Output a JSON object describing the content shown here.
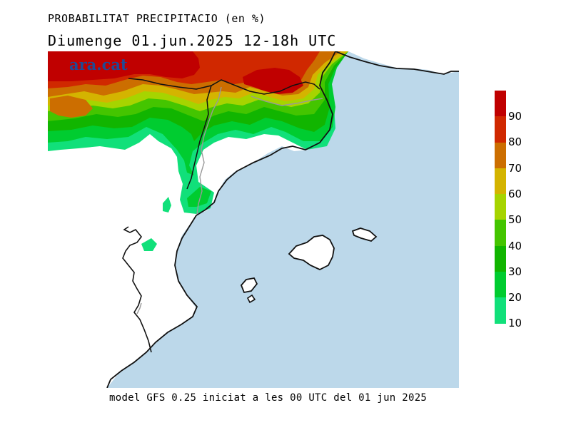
{
  "header": {
    "title": "PROBABILITAT PRECIPITACIO (en %)",
    "subtitle": "Diumenge  01.jun.2025 12-18h UTC"
  },
  "logo": {
    "text": "ara.cat"
  },
  "footer": {
    "text": "model GFS 0.25 iniciat a les 00 UTC del 01 jun 2025"
  },
  "legend": {
    "ticks": [
      "90",
      "80",
      "70",
      "60",
      "50",
      "40",
      "30",
      "20",
      "10"
    ],
    "colors": [
      "#c00000",
      "#d02800",
      "#cc6e00",
      "#d4b400",
      "#a6d400",
      "#44c500",
      "#11b500",
      "#00cc30",
      "#11e07a"
    ]
  },
  "map_colors": {
    "sea": "#bcd8ea",
    "land": "#ffffff",
    "coast": "#111111",
    "border": "#999999"
  }
}
